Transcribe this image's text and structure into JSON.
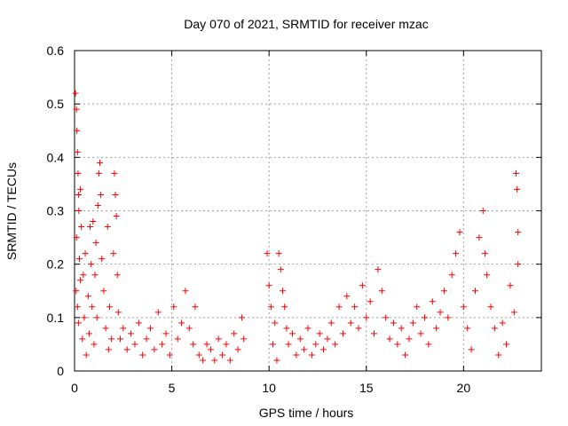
{
  "chart_data": {
    "type": "scatter",
    "title": "Day 070 of 2021, SRMTID for receiver mzac",
    "xlabel": "GPS time / hours",
    "ylabel": "SRMTID / TECUs",
    "xlim": [
      0,
      24
    ],
    "ylim": [
      0,
      0.6
    ],
    "x_ticks": [
      0,
      5,
      10,
      15,
      20
    ],
    "y_ticks": [
      0,
      0.1,
      0.2,
      0.3,
      0.4,
      0.5,
      0.6
    ],
    "grid": true,
    "marker": "+",
    "color": "#ff0000",
    "series": [
      {
        "name": "SRMTID",
        "points": [
          [
            0.05,
            0.52
          ],
          [
            0.1,
            0.49
          ],
          [
            0.12,
            0.45
          ],
          [
            0.15,
            0.41
          ],
          [
            0.18,
            0.37
          ],
          [
            0.2,
            0.33
          ],
          [
            0.22,
            0.3
          ],
          [
            0.1,
            0.25
          ],
          [
            0.08,
            0.15
          ],
          [
            0.15,
            0.12
          ],
          [
            0.2,
            0.09
          ],
          [
            0.25,
            0.21
          ],
          [
            0.3,
            0.17
          ],
          [
            0.3,
            0.34
          ],
          [
            0.35,
            0.27
          ],
          [
            0.4,
            0.06
          ],
          [
            0.45,
            0.18
          ],
          [
            0.5,
            0.1
          ],
          [
            0.55,
            0.22
          ],
          [
            0.6,
            0.03
          ],
          [
            0.7,
            0.14
          ],
          [
            0.75,
            0.07
          ],
          [
            0.8,
            0.27
          ],
          [
            0.85,
            0.2
          ],
          [
            0.9,
            0.12
          ],
          [
            0.95,
            0.28
          ],
          [
            1.0,
            0.05
          ],
          [
            1.05,
            0.18
          ],
          [
            1.1,
            0.24
          ],
          [
            1.15,
            0.1
          ],
          [
            1.2,
            0.31
          ],
          [
            1.25,
            0.37
          ],
          [
            1.3,
            0.39
          ],
          [
            1.35,
            0.33
          ],
          [
            1.4,
            0.21
          ],
          [
            1.5,
            0.15
          ],
          [
            1.6,
            0.08
          ],
          [
            1.7,
            0.27
          ],
          [
            1.75,
            0.04
          ],
          [
            1.8,
            0.12
          ],
          [
            1.9,
            0.06
          ],
          [
            2.0,
            0.22
          ],
          [
            2.05,
            0.37
          ],
          [
            2.1,
            0.33
          ],
          [
            2.15,
            0.29
          ],
          [
            2.2,
            0.18
          ],
          [
            2.25,
            0.11
          ],
          [
            2.35,
            0.06
          ],
          [
            2.5,
            0.08
          ],
          [
            2.7,
            0.04
          ],
          [
            2.9,
            0.07
          ],
          [
            3.1,
            0.05
          ],
          [
            3.3,
            0.09
          ],
          [
            3.5,
            0.03
          ],
          [
            3.7,
            0.06
          ],
          [
            3.9,
            0.08
          ],
          [
            4.1,
            0.04
          ],
          [
            4.3,
            0.11
          ],
          [
            4.5,
            0.05
          ],
          [
            4.7,
            0.07
          ],
          [
            4.9,
            0.03
          ],
          [
            5.1,
            0.12
          ],
          [
            5.3,
            0.06
          ],
          [
            5.5,
            0.09
          ],
          [
            5.7,
            0.15
          ],
          [
            5.9,
            0.08
          ],
          [
            6.1,
            0.05
          ],
          [
            6.2,
            0.12
          ],
          [
            6.4,
            0.03
          ],
          [
            6.6,
            0.02
          ],
          [
            6.8,
            0.05
          ],
          [
            7.0,
            0.04
          ],
          [
            7.2,
            0.02
          ],
          [
            7.4,
            0.06
          ],
          [
            7.6,
            0.03
          ],
          [
            7.8,
            0.05
          ],
          [
            8.0,
            0.02
          ],
          [
            8.2,
            0.07
          ],
          [
            8.4,
            0.04
          ],
          [
            8.6,
            0.1
          ],
          [
            8.7,
            0.06
          ],
          [
            9.9,
            0.22
          ],
          [
            10.0,
            0.16
          ],
          [
            10.1,
            0.12
          ],
          [
            10.2,
            0.05
          ],
          [
            10.3,
            0.09
          ],
          [
            10.4,
            0.02
          ],
          [
            10.5,
            0.22
          ],
          [
            10.6,
            0.19
          ],
          [
            10.7,
            0.15
          ],
          [
            10.8,
            0.12
          ],
          [
            10.9,
            0.08
          ],
          [
            11.0,
            0.05
          ],
          [
            11.2,
            0.07
          ],
          [
            11.4,
            0.03
          ],
          [
            11.6,
            0.06
          ],
          [
            11.8,
            0.04
          ],
          [
            12.0,
            0.08
          ],
          [
            12.2,
            0.03
          ],
          [
            12.4,
            0.05
          ],
          [
            12.6,
            0.07
          ],
          [
            12.8,
            0.04
          ],
          [
            13.0,
            0.06
          ],
          [
            13.2,
            0.09
          ],
          [
            13.4,
            0.05
          ],
          [
            13.6,
            0.12
          ],
          [
            13.8,
            0.07
          ],
          [
            14.0,
            0.14
          ],
          [
            14.2,
            0.09
          ],
          [
            14.4,
            0.12
          ],
          [
            14.6,
            0.08
          ],
          [
            14.8,
            0.16
          ],
          [
            15.0,
            0.1
          ],
          [
            15.2,
            0.13
          ],
          [
            15.4,
            0.07
          ],
          [
            15.6,
            0.19
          ],
          [
            15.8,
            0.15
          ],
          [
            16.0,
            0.1
          ],
          [
            16.2,
            0.06
          ],
          [
            16.4,
            0.09
          ],
          [
            16.6,
            0.05
          ],
          [
            16.8,
            0.08
          ],
          [
            17.0,
            0.03
          ],
          [
            17.2,
            0.06
          ],
          [
            17.4,
            0.09
          ],
          [
            17.6,
            0.12
          ],
          [
            17.8,
            0.07
          ],
          [
            18.0,
            0.1
          ],
          [
            18.2,
            0.05
          ],
          [
            18.4,
            0.13
          ],
          [
            18.6,
            0.08
          ],
          [
            18.8,
            0.11
          ],
          [
            19.0,
            0.15
          ],
          [
            19.2,
            0.1
          ],
          [
            19.4,
            0.18
          ],
          [
            19.6,
            0.22
          ],
          [
            19.8,
            0.26
          ],
          [
            20.0,
            0.12
          ],
          [
            20.2,
            0.08
          ],
          [
            20.4,
            0.04
          ],
          [
            20.6,
            0.15
          ],
          [
            20.8,
            0.25
          ],
          [
            21.0,
            0.3
          ],
          [
            21.1,
            0.22
          ],
          [
            21.2,
            0.18
          ],
          [
            21.4,
            0.12
          ],
          [
            21.6,
            0.08
          ],
          [
            21.8,
            0.03
          ],
          [
            22.0,
            0.09
          ],
          [
            22.2,
            0.05
          ],
          [
            22.4,
            0.16
          ],
          [
            22.6,
            0.11
          ],
          [
            22.7,
            0.37
          ],
          [
            22.75,
            0.34
          ],
          [
            22.8,
            0.26
          ],
          [
            22.8,
            0.2
          ]
        ]
      }
    ]
  }
}
